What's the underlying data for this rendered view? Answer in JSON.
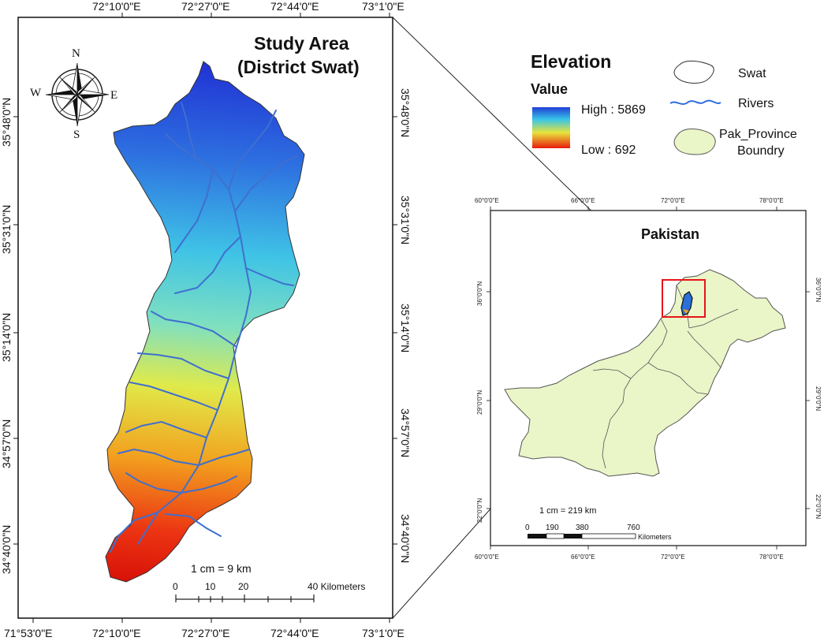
{
  "main_map": {
    "title": "Study Area",
    "subtitle": "(District Swat)",
    "top_ticks": [
      "72°10'0\"E",
      "72°27'0\"E",
      "72°44'0\"E",
      "73°1'0\"E"
    ],
    "bottom_ticks": [
      "71°53'0\"E",
      "72°10'0\"E",
      "72°27'0\"E",
      "72°44'0\"E",
      "73°1'0\"E"
    ],
    "left_ticks": [
      "35°48'0\"N",
      "35°31'0\"N",
      "35°14'0\"N",
      "34°57'0\"N",
      "34°40'0\"N"
    ],
    "right_ticks": [
      "35°48'0\"N",
      "35°31'0\"N",
      "35°14'0\"N",
      "34°57'0\"N",
      "34°40'0\"N"
    ],
    "scale_text": "1 cm = 9 km",
    "scale_labels": [
      "0",
      "10",
      "20",
      "40 Kilometers"
    ],
    "compass": {
      "n": "N",
      "s": "S",
      "e": "E",
      "w": "W"
    }
  },
  "legend": {
    "heading": "Elevation",
    "subheading": "Value",
    "high": "High : 5869",
    "low": "Low : 692",
    "items": [
      {
        "label": "Swat",
        "icon": "outline-polygon-icon"
      },
      {
        "label": "Rivers",
        "icon": "river-line-icon"
      },
      {
        "label": "Pak_Province",
        "label2": "Boundry",
        "icon": "province-polygon-icon"
      }
    ],
    "colors": {
      "high": "#1f3fd6",
      "mid1": "#39c6e8",
      "mid2": "#e8e33a",
      "low": "#e81b0d",
      "province_fill": "#eaf5c8",
      "river": "#3f7fd8",
      "inset_box": "#e8141a"
    }
  },
  "inset_map": {
    "title": "Pakistan",
    "top_ticks": [
      "60°0'0\"E",
      "66°0'0\"E",
      "72°0'0\"E",
      "78°0'0\"E"
    ],
    "bottom_ticks": [
      "60°0'0\"E",
      "66°0'0\"E",
      "72°0'0\"E",
      "78°0'0\"E"
    ],
    "left_ticks": [
      "36°0'0\"N",
      "29°0'0\"N",
      "22°0'0\"N"
    ],
    "right_ticks": [
      "36°0'0\"N",
      "29°0'0\"N",
      "22°0'0\"N"
    ],
    "scale_text": "1 cm = 219 km",
    "scale_labels": [
      "0",
      "190",
      "380",
      "760"
    ],
    "scale_unit": "Kilometers"
  }
}
